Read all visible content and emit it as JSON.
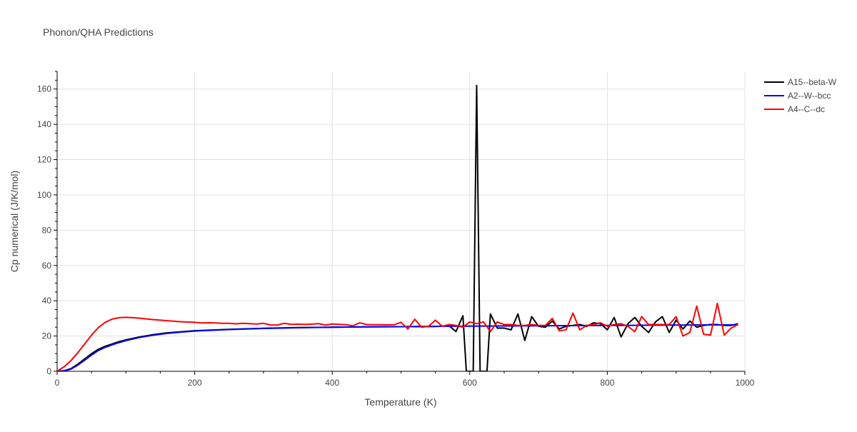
{
  "chart_data": {
    "type": "line",
    "title": "Phonon/QHA Predictions",
    "xlabel": "Temperature (K)",
    "ylabel": "Cp numerical (J/K/mol)",
    "xlim": [
      0,
      1000
    ],
    "ylim": [
      0,
      170
    ],
    "x_ticks": [
      0,
      200,
      400,
      600,
      800,
      1000
    ],
    "x_tick_labels": [
      "0",
      "200",
      "400",
      "600",
      "800",
      "1000"
    ],
    "y_ticks": [
      0,
      20,
      40,
      60,
      80,
      100,
      120,
      140,
      160
    ],
    "y_tick_labels": [
      "0",
      "20",
      "40",
      "60",
      "80",
      "100",
      "120",
      "140",
      "160"
    ],
    "grid": true,
    "legend_position": "top-right",
    "series": [
      {
        "name": "A15--beta-W",
        "color": "#000000",
        "x": [
          0,
          10,
          20,
          30,
          40,
          50,
          60,
          70,
          80,
          90,
          100,
          120,
          140,
          160,
          180,
          200,
          250,
          300,
          350,
          400,
          450,
          500,
          550,
          570,
          580,
          590,
          595,
          600,
          605,
          610,
          615,
          620,
          625,
          630,
          640,
          650,
          660,
          670,
          680,
          690,
          700,
          710,
          720,
          730,
          740,
          750,
          760,
          770,
          780,
          790,
          800,
          810,
          820,
          830,
          840,
          850,
          860,
          870,
          880,
          890,
          900,
          910,
          920,
          930,
          940,
          950,
          960,
          970,
          980,
          990
        ],
        "y": [
          0,
          0.3,
          1.5,
          4,
          7,
          10,
          12.5,
          14.2,
          15.5,
          16.8,
          17.8,
          19.5,
          20.8,
          21.8,
          22.4,
          23,
          23.8,
          24.4,
          24.8,
          25,
          25.2,
          25.3,
          25.4,
          25.8,
          22.5,
          31.5,
          0,
          0,
          0,
          162,
          0,
          0,
          0,
          32.5,
          24.5,
          24.5,
          23.5,
          32.5,
          17.5,
          31,
          25.5,
          25,
          28.5,
          24,
          25.5,
          26,
          26.5,
          25.5,
          27.5,
          27,
          23.5,
          30.5,
          19.5,
          27,
          30.5,
          25.5,
          22,
          28,
          31,
          22,
          29,
          24,
          28.5,
          25,
          26,
          26.5,
          26.5,
          26,
          26,
          27
        ]
      },
      {
        "name": "A2--W--bcc",
        "color": "#0000ff",
        "x": [
          0,
          10,
          20,
          30,
          40,
          50,
          60,
          70,
          80,
          90,
          100,
          120,
          140,
          160,
          180,
          200,
          250,
          300,
          350,
          400,
          450,
          500,
          550,
          600,
          650,
          700,
          750,
          800,
          850,
          900,
          950,
          990
        ],
        "y": [
          0,
          0.2,
          1.2,
          3.5,
          6.3,
          9.2,
          11.8,
          13.6,
          15,
          16.3,
          17.4,
          19.2,
          20.5,
          21.5,
          22.2,
          22.8,
          23.7,
          24.3,
          24.7,
          25,
          25.2,
          25.3,
          25.5,
          25.6,
          25.7,
          25.8,
          25.9,
          26,
          26.1,
          26.2,
          26.3,
          26.3
        ]
      },
      {
        "name": "A4--C--dc",
        "color": "#ff0000",
        "x": [
          0,
          10,
          20,
          30,
          40,
          50,
          60,
          70,
          80,
          90,
          100,
          110,
          120,
          140,
          160,
          180,
          200,
          210,
          220,
          230,
          240,
          250,
          260,
          270,
          280,
          290,
          300,
          310,
          320,
          330,
          340,
          350,
          360,
          370,
          380,
          390,
          400,
          410,
          420,
          430,
          440,
          450,
          460,
          470,
          480,
          490,
          500,
          510,
          520,
          530,
          540,
          550,
          560,
          570,
          580,
          590,
          600,
          610,
          620,
          630,
          640,
          650,
          660,
          670,
          680,
          690,
          700,
          710,
          720,
          730,
          740,
          750,
          760,
          770,
          780,
          790,
          800,
          810,
          820,
          830,
          840,
          850,
          860,
          870,
          880,
          890,
          900,
          910,
          920,
          930,
          940,
          950,
          960,
          970,
          980,
          990
        ],
        "y": [
          0,
          2.5,
          6,
          10.5,
          15.5,
          20.5,
          24.8,
          27.8,
          29.6,
          30.4,
          30.6,
          30.4,
          30.1,
          29.3,
          28.7,
          28.1,
          27.8,
          27.4,
          27.5,
          27.4,
          27.2,
          27.2,
          26.9,
          27.2,
          27,
          26.8,
          27.2,
          26.3,
          26.2,
          27.2,
          26.6,
          26.7,
          26.6,
          26.7,
          27,
          26.2,
          26.8,
          26.6,
          26.4,
          25.8,
          27.5,
          26.5,
          26.4,
          26.4,
          26.3,
          26.4,
          27.8,
          24,
          29.5,
          25,
          25.5,
          29,
          25.5,
          26.5,
          26,
          25,
          28,
          27,
          28,
          22.5,
          28,
          26.5,
          26.5,
          26,
          26,
          26.5,
          26,
          26,
          30,
          23,
          23.5,
          33,
          23.5,
          26,
          26.5,
          27.5,
          25.5,
          26.5,
          27,
          25.5,
          22.5,
          31,
          26.5,
          26.5,
          26.5,
          26.5,
          31,
          20,
          22,
          37,
          21,
          20.5,
          38.5,
          20.5,
          24.5,
          26.5
        ]
      }
    ]
  }
}
